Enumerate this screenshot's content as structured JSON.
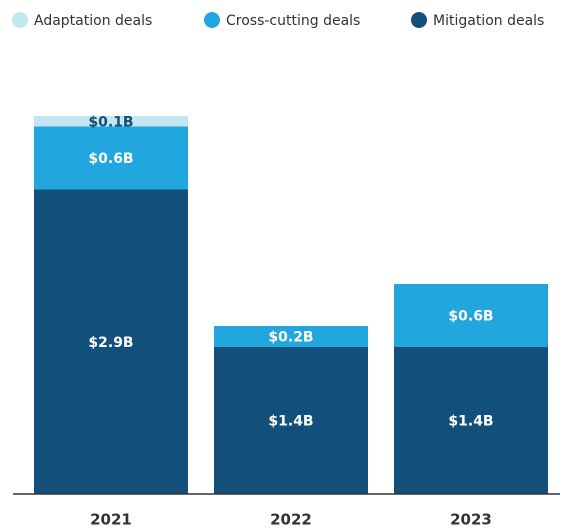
{
  "chart_data": {
    "type": "bar",
    "stacked": true,
    "categories": [
      "2021",
      "2022",
      "2023"
    ],
    "series": [
      {
        "name": "Mitigation deals",
        "color": "#124f7a",
        "values": [
          2.9,
          1.4,
          1.4
        ],
        "value_labels": [
          "$2.9B",
          "$1.4B",
          "$1.4B"
        ]
      },
      {
        "name": "Cross-cutting deals",
        "color": "#22a6de",
        "values": [
          0.6,
          0.2,
          0.6
        ],
        "value_labels": [
          "$0.6B",
          "$0.2B",
          "$0.6B"
        ]
      },
      {
        "name": "Adaptation deals",
        "color": "#c5e5f3",
        "values": [
          0.1,
          null,
          null
        ],
        "value_labels": [
          "$0.1B",
          null,
          null
        ]
      }
    ],
    "legend_order": [
      2,
      1,
      0
    ]
  }
}
